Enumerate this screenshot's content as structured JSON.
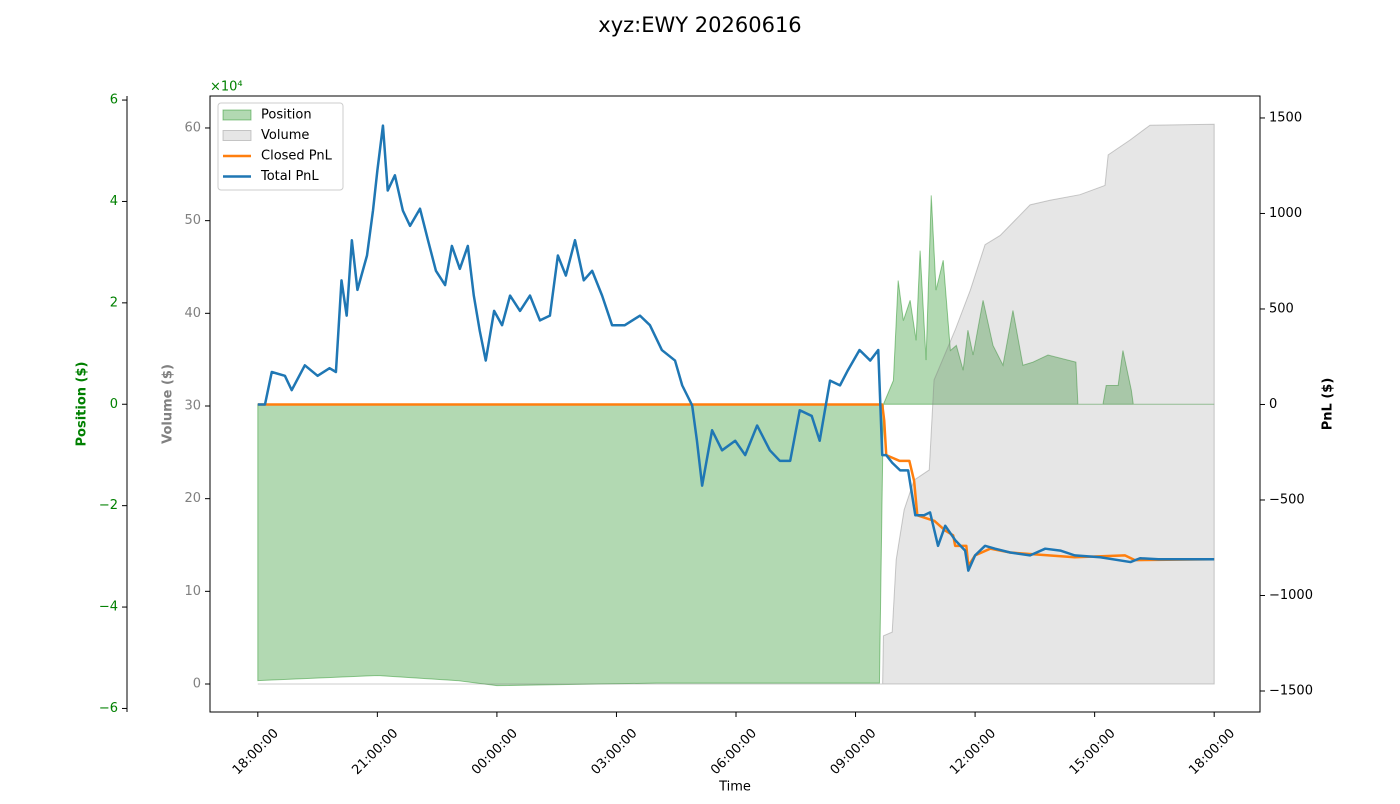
{
  "chart_data": {
    "type": "combo",
    "title": "xyz:EWY 20260616",
    "x_label": "Time",
    "xlim": [
      -1.2,
      25.15
    ],
    "xticks": [
      {
        "value": 0,
        "label": "18:00:00"
      },
      {
        "value": 3,
        "label": "21:00:00"
      },
      {
        "value": 6,
        "label": "00:00:00"
      },
      {
        "value": 9,
        "label": "03:00:00"
      },
      {
        "value": 12,
        "label": "06:00:00"
      },
      {
        "value": 15,
        "label": "09:00:00"
      },
      {
        "value": 18,
        "label": "12:00:00"
      },
      {
        "value": 21,
        "label": "15:00:00"
      },
      {
        "value": 24,
        "label": "18:00:00"
      }
    ],
    "axes": {
      "position": {
        "label": "Position ($)",
        "color": "#008000",
        "lim": [
          -6.07,
          6.08
        ],
        "ticks": [
          {
            "value": -6,
            "label": "−6"
          },
          {
            "value": -4,
            "label": "−4"
          },
          {
            "value": -2,
            "label": "−2"
          },
          0,
          2,
          4,
          6
        ]
      },
      "volume": {
        "label": "Volume ($)",
        "color": "#808080",
        "lim": [
          -3.02,
          63.45
        ],
        "offset_label": "×10⁴",
        "ticks": [
          0,
          10,
          20,
          30,
          40,
          50,
          60
        ]
      },
      "pnl": {
        "label": "PnL ($)",
        "color": "#000000",
        "lim": [
          -1610,
          1615
        ],
        "ticks": [
          {
            "value": -1500,
            "label": "−1500"
          },
          {
            "value": -1000,
            "label": "−1000"
          },
          {
            "value": -500,
            "label": "−500"
          },
          0,
          500,
          1000,
          1500
        ]
      }
    },
    "legend": "upper left",
    "series": [
      {
        "name": "Position",
        "style": "area",
        "axis": "position",
        "color": "#008000",
        "x": [
          0,
          3,
          5,
          6,
          10,
          15.6,
          15.7,
          15.95,
          16.07,
          16.2,
          16.37,
          16.52,
          16.62,
          16.77,
          16.9,
          17.02,
          17.2,
          17.38,
          17.53,
          17.7,
          17.82,
          17.95,
          18.2,
          18.45,
          18.7,
          18.95,
          19.2,
          19.45,
          19.83,
          20.53,
          20.58,
          21.21,
          21.29,
          21.59,
          21.71,
          21.92,
          21.97,
          24
        ],
        "values": [
          -5.45,
          -5.35,
          -5.45,
          -5.55,
          -5.5,
          -5.5,
          0,
          0.47,
          2.44,
          1.65,
          2.05,
          1.26,
          3.03,
          0.87,
          4.12,
          2.25,
          2.84,
          1.06,
          1.16,
          0.67,
          1.46,
          0.97,
          2.05,
          1.16,
          0.77,
          1.85,
          0.77,
          0.83,
          0.97,
          0.83,
          0,
          0,
          0.37,
          0.37,
          1.06,
          0.28,
          0,
          0
        ]
      },
      {
        "name": "Volume",
        "style": "area",
        "axis": "volume",
        "color": "#808080",
        "x": [
          0,
          15.68,
          15.7,
          15.92,
          16.02,
          16.22,
          16.47,
          16.85,
          16.97,
          17.5,
          17.88,
          18.25,
          18.63,
          19.13,
          19.38,
          19.88,
          20.63,
          21.26,
          21.34,
          21.89,
          22.39,
          24
        ],
        "values": [
          0,
          0,
          5.2,
          5.6,
          13.4,
          18.8,
          22,
          23.1,
          32.8,
          38.2,
          42.5,
          47.4,
          48.4,
          50.6,
          51.7,
          52.2,
          52.8,
          53.8,
          57.1,
          58.7,
          60.3,
          60.4
        ]
      },
      {
        "name": "Closed PnL",
        "style": "line",
        "axis": "pnl",
        "color": "#ff7f0e",
        "x": [
          0,
          15.67,
          15.72,
          15.77,
          16.1,
          16.35,
          16.47,
          16.55,
          16.98,
          17.25,
          17.45,
          17.5,
          17.78,
          17.83,
          18.0,
          18.38,
          18.88,
          20.5,
          21.76,
          22.01,
          24
        ],
        "values": [
          0,
          0,
          -85,
          -265,
          -295,
          -295,
          -400,
          -580,
          -610,
          -660,
          -685,
          -740,
          -740,
          -845,
          -790,
          -755,
          -775,
          -800,
          -790,
          -815,
          -810
        ]
      },
      {
        "name": "Total PnL",
        "style": "line",
        "axis": "pnl",
        "color": "#1f77b4",
        "x": [
          0,
          0.18,
          0.35,
          0.68,
          0.85,
          1.18,
          1.5,
          1.8,
          1.96,
          2.1,
          2.23,
          2.36,
          2.5,
          2.74,
          2.89,
          3.0,
          3.14,
          3.26,
          3.44,
          3.64,
          3.82,
          4.07,
          4.27,
          4.47,
          4.7,
          4.87,
          5.07,
          5.27,
          5.42,
          5.57,
          5.72,
          5.93,
          6.13,
          6.33,
          6.58,
          6.83,
          7.08,
          7.33,
          7.53,
          7.73,
          7.96,
          8.18,
          8.39,
          8.64,
          8.89,
          9.21,
          9.59,
          9.84,
          10.14,
          10.47,
          10.65,
          10.9,
          11.02,
          11.15,
          11.4,
          11.65,
          11.98,
          12.23,
          12.53,
          12.85,
          13.1,
          13.36,
          13.6,
          13.9,
          14.1,
          14.36,
          14.61,
          14.81,
          15.1,
          15.37,
          15.57,
          15.67,
          15.77,
          15.92,
          16.12,
          16.32,
          16.5,
          16.72,
          16.87,
          17.07,
          17.25,
          17.5,
          17.75,
          17.83,
          18.0,
          18.25,
          18.5,
          18.88,
          19.38,
          19.76,
          20.14,
          20.5,
          21.14,
          21.9,
          22.14,
          22.6,
          24
        ],
        "values": [
          0,
          0,
          170,
          150,
          75,
          205,
          150,
          190,
          170,
          650,
          465,
          860,
          600,
          780,
          1015,
          1225,
          1460,
          1120,
          1200,
          1015,
          935,
          1025,
          860,
          700,
          625,
          830,
          710,
          830,
          570,
          385,
          230,
          490,
          415,
          570,
          490,
          570,
          440,
          465,
          780,
          675,
          860,
          650,
          700,
          570,
          415,
          415,
          465,
          415,
          285,
          230,
          100,
          -5,
          -190,
          -425,
          -135,
          -240,
          -190,
          -265,
          -110,
          -240,
          -295,
          -295,
          -30,
          -60,
          -190,
          125,
          100,
          180,
          285,
          230,
          285,
          -265,
          -265,
          -305,
          -345,
          -345,
          -580,
          -580,
          -565,
          -740,
          -635,
          -710,
          -765,
          -870,
          -790,
          -740,
          -755,
          -775,
          -790,
          -755,
          -765,
          -790,
          -800,
          -825,
          -805,
          -810,
          -810
        ]
      }
    ]
  }
}
